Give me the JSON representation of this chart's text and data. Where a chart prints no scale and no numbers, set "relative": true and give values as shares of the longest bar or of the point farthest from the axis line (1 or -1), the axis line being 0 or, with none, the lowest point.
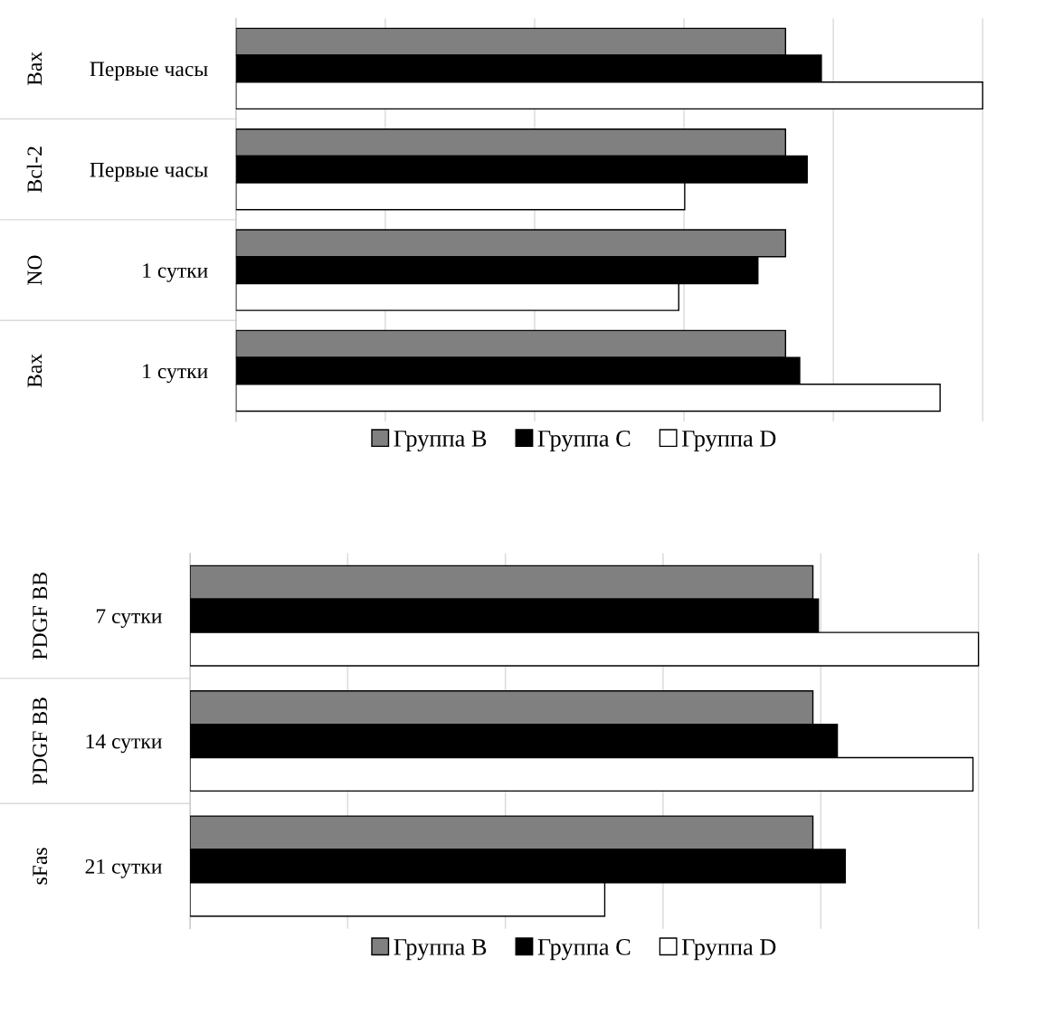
{
  "chart_data": [
    {
      "type": "bar",
      "orientation": "horizontal",
      "relative": true,
      "grid": "x",
      "legend": "bottom",
      "categories": [
        "Первые часы",
        "Первые часы",
        "1 сутки",
        "1 сутки"
      ],
      "annotations": [
        "Bax",
        "Bcl-2",
        "NO",
        "Bax"
      ],
      "series": [
        {
          "name": "Группа B",
          "color": "#808080",
          "values": [
            0.736,
            0.736,
            0.736,
            0.736
          ]
        },
        {
          "name": "Группа C",
          "color": "#000000",
          "values": [
            0.784,
            0.765,
            0.699,
            0.755
          ]
        },
        {
          "name": "Группа D",
          "color": "#ffffff",
          "values": [
            1,
            0.601,
            0.593,
            0.943
          ]
        }
      ]
    },
    {
      "type": "bar",
      "orientation": "horizontal",
      "relative": true,
      "grid": "x",
      "legend": "bottom",
      "categories": [
        "7 сутки",
        "14 сутки",
        "21 сутки"
      ],
      "annotations": [
        "PDGF BB",
        "PDGF BB",
        "sFas"
      ],
      "series": [
        {
          "name": "Группа B",
          "color": "#808080",
          "values": [
            0.79,
            0.79,
            0.79
          ]
        },
        {
          "name": "Группа C",
          "color": "#000000",
          "values": [
            0.797,
            0.821,
            0.831
          ]
        },
        {
          "name": "Группа D",
          "color": "#ffffff",
          "values": [
            1,
            0.993,
            0.526
          ]
        }
      ]
    }
  ]
}
